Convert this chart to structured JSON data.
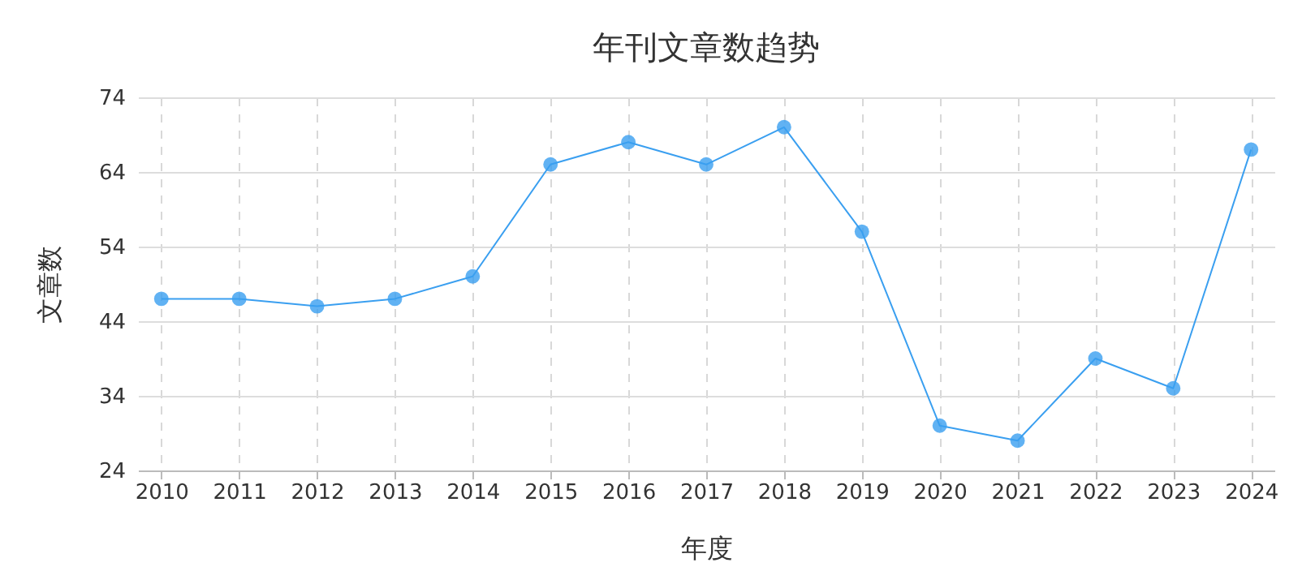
{
  "chart_data": {
    "type": "line",
    "title": "年刊文章数趋势",
    "xlabel": "年度",
    "ylabel": "文章数",
    "categories": [
      "2010",
      "2011",
      "2012",
      "2013",
      "2014",
      "2015",
      "2016",
      "2017",
      "2018",
      "2019",
      "2020",
      "2021",
      "2022",
      "2023",
      "2024"
    ],
    "series": [
      {
        "color": "#3a9ff0",
        "values": [
          47,
          47,
          46,
          47,
          50,
          65,
          68,
          65,
          70,
          56,
          30,
          28,
          39,
          35,
          67
        ]
      }
    ],
    "ylim": [
      24,
      74
    ],
    "yticks": [
      24,
      34,
      44,
      54,
      64,
      74
    ],
    "grid": true,
    "marker": "circle",
    "line_style": "solid"
  }
}
